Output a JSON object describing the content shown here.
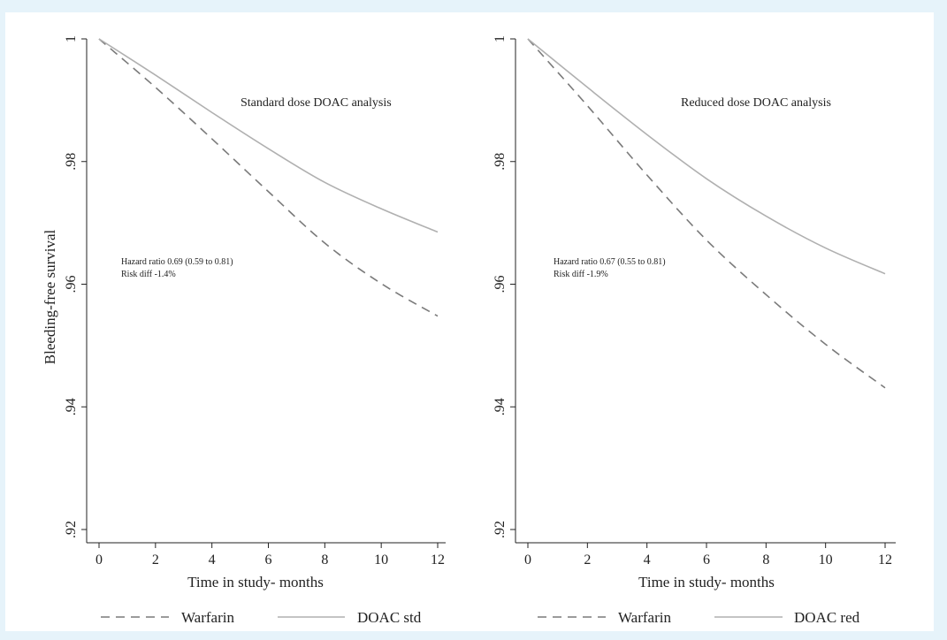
{
  "colors": {
    "page_background": "#e6f3fa",
    "plot_background": "#ffffff",
    "warfarin": "#7a7a7a",
    "doac": "#b0b0b0",
    "axis": "#222222"
  },
  "chart_data": [
    {
      "type": "line",
      "title": "Standard dose DOAC analysis",
      "xlabel": "Time in study- months",
      "ylabel": "Bleeding-free survival",
      "xlim": [
        0,
        12
      ],
      "ylim": [
        0.92,
        1.0
      ],
      "xticks": [
        0,
        2,
        4,
        6,
        8,
        10,
        12
      ],
      "xtick_labels": [
        "0",
        "2",
        "4",
        "6",
        "8",
        "10",
        "12"
      ],
      "yticks": [
        0.92,
        0.94,
        0.96,
        0.98,
        1.0
      ],
      "ytick_labels": [
        ".92",
        ".94",
        ".96",
        ".98",
        "1"
      ],
      "grid": false,
      "legend_position": "bottom",
      "annotation": [
        "Hazard ratio 0.69 (0.59 to 0.81)",
        "Risk diff -1.4%"
      ],
      "x": [
        0,
        2,
        4,
        6,
        8,
        10,
        12
      ],
      "series": [
        {
          "name": "Warfarin",
          "style": "dashed",
          "color": "#7a7a7a",
          "values": [
            1.0,
            0.9921,
            0.9837,
            0.9751,
            0.9667,
            0.9601,
            0.9548
          ]
        },
        {
          "name": "DOAC std",
          "style": "solid",
          "color": "#b0b0b0",
          "values": [
            1.0,
            0.9941,
            0.988,
            0.9821,
            0.9766,
            0.9723,
            0.9685
          ]
        }
      ]
    },
    {
      "type": "line",
      "title": "Reduced dose DOAC analysis",
      "xlabel": "Time in study- months",
      "ylabel": "",
      "xlim": [
        0,
        12
      ],
      "ylim": [
        0.92,
        1.0
      ],
      "xticks": [
        0,
        2,
        4,
        6,
        8,
        10,
        12
      ],
      "xtick_labels": [
        "0",
        "2",
        "4",
        "6",
        "8",
        "10",
        "12"
      ],
      "yticks": [
        0.92,
        0.94,
        0.96,
        0.98,
        1.0
      ],
      "ytick_labels": [
        ".92",
        ".94",
        ".96",
        ".98",
        "1"
      ],
      "grid": false,
      "legend_position": "bottom",
      "annotation": [
        "Hazard ratio 0.67 (0.55 to 0.81)",
        "Risk diff -1.9%"
      ],
      "x": [
        0,
        2,
        4,
        6,
        8,
        10,
        12
      ],
      "series": [
        {
          "name": "Warfarin",
          "style": "dashed",
          "color": "#7a7a7a",
          "values": [
            1.0,
            0.9891,
            0.9778,
            0.9672,
            0.9583,
            0.9502,
            0.9431
          ]
        },
        {
          "name": "DOAC red",
          "style": "solid",
          "color": "#b0b0b0",
          "values": [
            1.0,
            0.9921,
            0.9844,
            0.9772,
            0.9711,
            0.9659,
            0.9617
          ]
        }
      ]
    }
  ]
}
